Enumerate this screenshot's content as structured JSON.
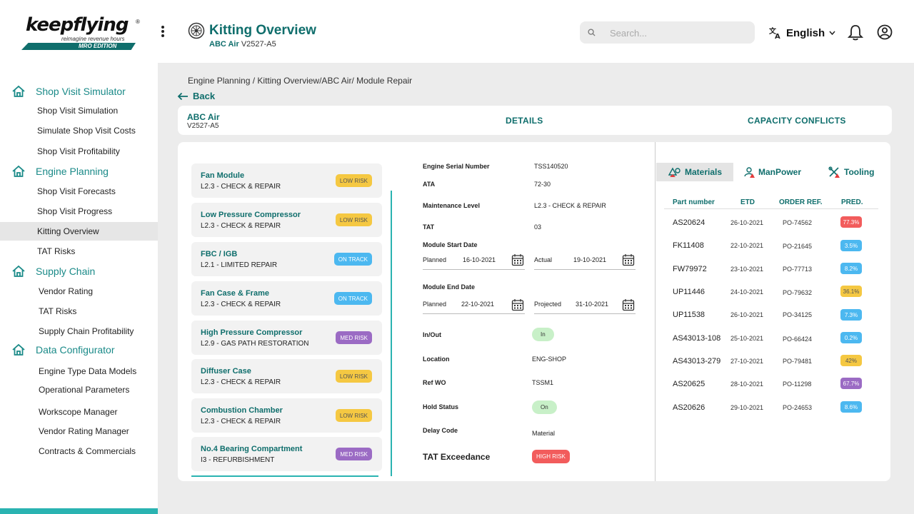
{
  "brand": {
    "logo_text": "keepflying",
    "tagline": "reimagine revenue hours",
    "edition": "MRO EDITION",
    "reg": "®"
  },
  "header": {
    "title": "Kitting Overview",
    "customer": "ABC Air",
    "engine": "V2527-A5",
    "search_placeholder": "Search...",
    "language": "English"
  },
  "sidebar": {
    "sections": [
      {
        "label": "Shop Visit Simulator",
        "items": [
          "Shop Visit Simulation",
          "Simulate Shop Visit Costs",
          "Shop Visit Profitability"
        ]
      },
      {
        "label": "Engine Planning",
        "items": [
          "Shop Visit Forecasts",
          "Shop Visit Progress",
          "Kitting Overview",
          "TAT Risks"
        ]
      },
      {
        "label": "Supply Chain",
        "items": [
          "Vendor Rating",
          "TAT Risks",
          "Supply Chain Profitability"
        ]
      },
      {
        "label": "Data Configurator",
        "items": [
          "Engine Type Data Models",
          "Operational Parameters",
          "Workscope Manager",
          "Vendor Rating Manager",
          "Contracts & Commercials"
        ]
      }
    ],
    "active_item": "Kitting Overview"
  },
  "breadcrumb": "Engine Planning / Kitting Overview/ABC Air/ Module Repair",
  "back_label": "Back",
  "tabs": {
    "customer": "ABC Air",
    "engine": "V2527-A5",
    "details": "DETAILS",
    "capacity": "CAPACITY CONFLICTS"
  },
  "modules": [
    {
      "name": "Fan Module",
      "desc": "L2.3 - CHECK & REPAIR",
      "status": "LOW RISK",
      "color": "#f5c842"
    },
    {
      "name": "Low Pressure Compressor",
      "desc": "L2.3 - CHECK & REPAIR",
      "status": "LOW RISK",
      "color": "#f5c842"
    },
    {
      "name": "FBC / IGB",
      "desc": "L2.1 - LIMITED REPAIR",
      "status": "ON TRACK",
      "color": "#4cb8f0"
    },
    {
      "name": "Fan Case & Frame",
      "desc": "L2.3 - CHECK & REPAIR",
      "status": "ON TRACK",
      "color": "#4cb8f0"
    },
    {
      "name": "High Pressure Compressor",
      "desc": "L2.9 - GAS PATH RESTORATION",
      "status": "MED RISK",
      "color": "#9b6bc4"
    },
    {
      "name": "Diffuser Case",
      "desc": "L2.3 - CHECK & REPAIR",
      "status": "LOW RISK",
      "color": "#f5c842"
    },
    {
      "name": "Combustion Chamber",
      "desc": "L2.3 - CHECK & REPAIR",
      "status": "LOW RISK",
      "color": "#f5c842"
    },
    {
      "name": "No.4 Bearing Compartment",
      "desc": "I3 - REFURBISHMENT",
      "status": "MED RISK",
      "color": "#9b6bc4"
    }
  ],
  "details": {
    "esn_label": "Engine Serial Number",
    "esn": "TSS140520",
    "ata_label": "ATA",
    "ata": "72-30",
    "maint_label": "Maintenance Level",
    "maint": "L2.3 - CHECK & REPAIR",
    "tat_label": "TAT",
    "tat": "03",
    "start_label": "Module Start Date",
    "planned_label": "Planned",
    "start_planned": "16-10-2021",
    "actual_label": "Actual",
    "start_actual": "19-10-2021",
    "end_label": "Module End Date",
    "end_planned": "22-10-2021",
    "projected_label": "Projected",
    "end_projected": "31-10-2021",
    "inout_label": "In/Out",
    "inout": "In",
    "location_label": "Location",
    "location": "ENG-SHOP",
    "refwo_label": "Ref WO",
    "refwo": "TSSM1",
    "hold_label": "Hold Status",
    "hold": "On",
    "delay_label": "Delay Code",
    "delay": "Material",
    "tat_ex_label": "TAT Exceedance",
    "tat_ex": "HIGH RISK"
  },
  "right_tabs": {
    "materials": "Materials",
    "manpower": "ManPower",
    "tooling": "Tooling"
  },
  "materials": {
    "headers": {
      "part": "Part number",
      "etd": "ETD",
      "order": "ORDER REF.",
      "pred": "PRED."
    },
    "rows": [
      {
        "part": "AS20624",
        "etd": "26-10-2021",
        "order": "PO-74562",
        "pred": "77.3%",
        "color": "#f25c5c"
      },
      {
        "part": "FK11408",
        "etd": "22-10-2021",
        "order": "PO-21645",
        "pred": "3.5%",
        "color": "#4cb8f0"
      },
      {
        "part": "FW79972",
        "etd": "23-10-2021",
        "order": "PO-77713",
        "pred": "8.2%",
        "color": "#4cb8f0"
      },
      {
        "part": "UP11446",
        "etd": "24-10-2021",
        "order": "PO-79632",
        "pred": "36.1%",
        "color": "#f5c842"
      },
      {
        "part": "UP11538",
        "etd": "26-10-2021",
        "order": "PO-34125",
        "pred": "7.3%",
        "color": "#4cb8f0"
      },
      {
        "part": "AS43013-108",
        "etd": "25-10-2021",
        "order": "PO-66424",
        "pred": "0.2%",
        "color": "#4cb8f0"
      },
      {
        "part": "AS43013-279",
        "etd": "27-10-2021",
        "order": "PO-79481",
        "pred": "42%",
        "color": "#f5c842"
      },
      {
        "part": "AS20625",
        "etd": "28-10-2021",
        "order": "PO-11298",
        "pred": "67.7%",
        "color": "#9b6bc4"
      },
      {
        "part": "AS20626",
        "etd": "29-10-2021",
        "order": "PO-24653",
        "pred": "8.6%",
        "color": "#4cb8f0"
      }
    ]
  },
  "icons": {
    "menu": "kebab-menu-icon",
    "search": "search-icon",
    "language": "translate-icon",
    "notifications": "bell-icon",
    "account": "user-icon",
    "home": "home-icon",
    "calendar": "calendar-icon"
  }
}
